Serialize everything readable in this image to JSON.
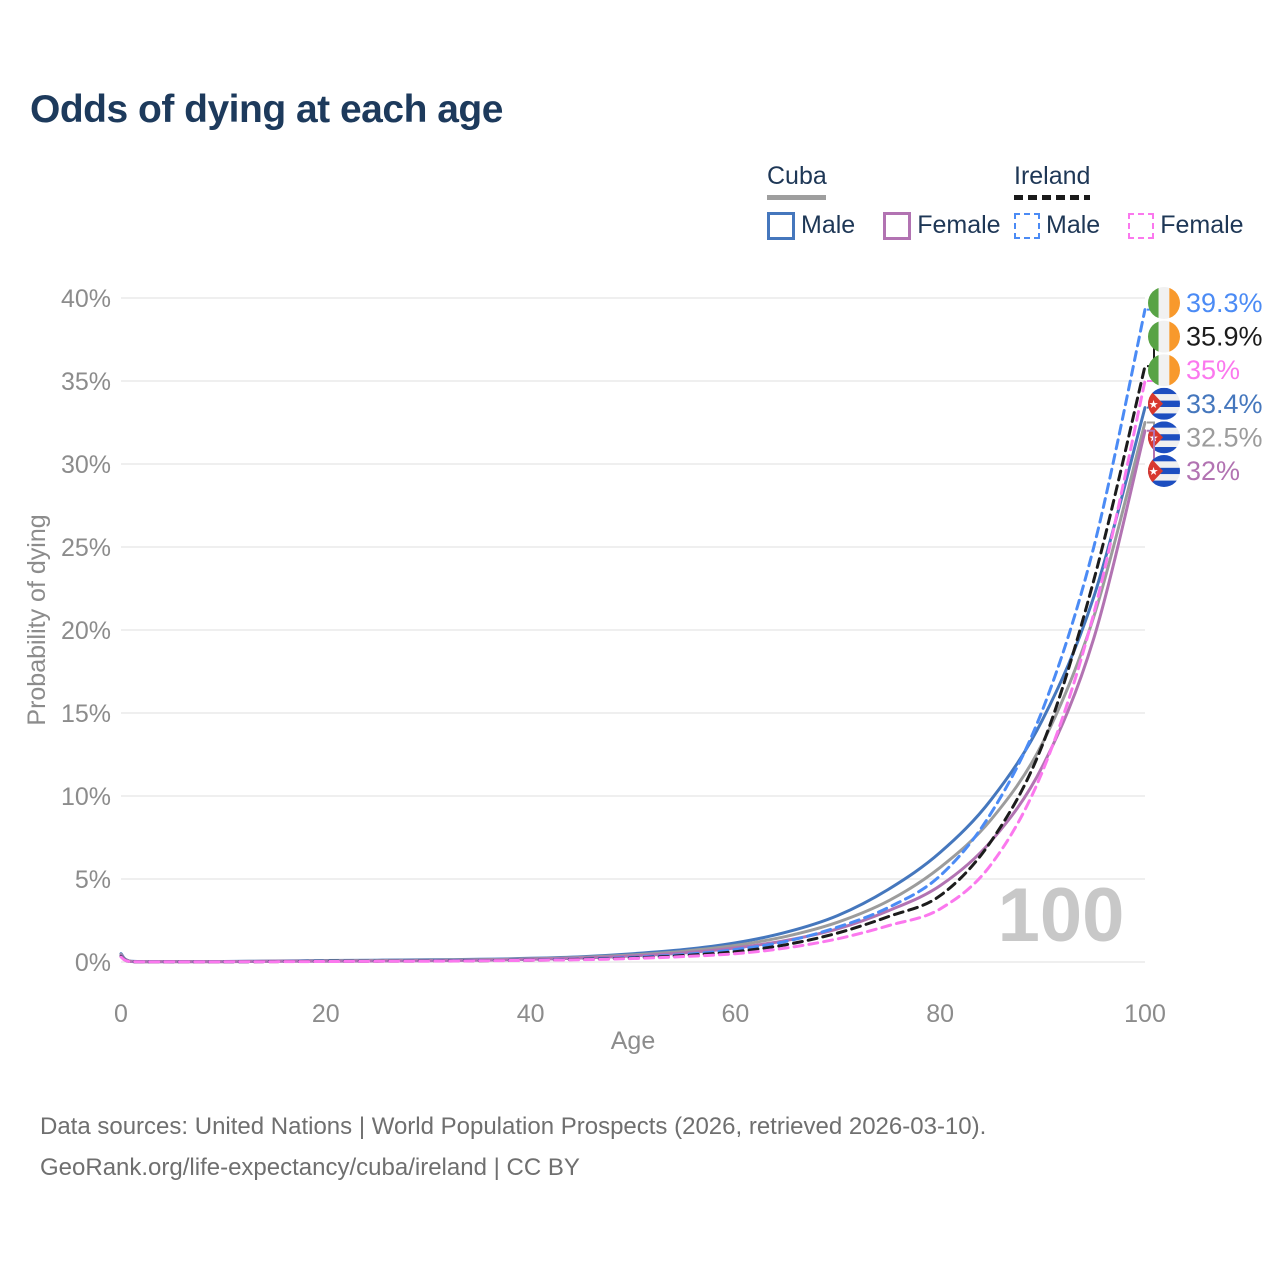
{
  "title": "Odds of dying at each age",
  "legend": {
    "groups": [
      {
        "label": "Cuba",
        "line_style": "solid",
        "swatch_color": "#9e9e9e",
        "items": [
          {
            "label": "Male",
            "color": "#4577bd",
            "dashed": false
          },
          {
            "label": "Female",
            "color": "#b273b2",
            "dashed": false
          }
        ]
      },
      {
        "label": "Ireland",
        "line_style": "dashed",
        "swatch_color": "#1a1a1a",
        "items": [
          {
            "label": "Male",
            "color": "#4b8bf5",
            "dashed": true
          },
          {
            "label": "Female",
            "color": "#fb78ee",
            "dashed": true
          }
        ]
      }
    ]
  },
  "chart_data": {
    "type": "line",
    "title": "Odds of dying at each age",
    "xlabel": "Age",
    "ylabel": "Probability of dying",
    "xlim": [
      0,
      100
    ],
    "ylim": [
      0,
      40
    ],
    "x_ticks": [
      0,
      20,
      40,
      60,
      80,
      100
    ],
    "y_ticks_percent": [
      0,
      5,
      10,
      15,
      20,
      25,
      30,
      35,
      40
    ],
    "grid": "horizontal",
    "hover_age_watermark": "100",
    "x": [
      0,
      1,
      5,
      10,
      15,
      20,
      25,
      30,
      35,
      40,
      45,
      50,
      55,
      60,
      65,
      70,
      75,
      80,
      85,
      90,
      95,
      100
    ],
    "series": [
      {
        "name": "Cuba Male",
        "country": "Cuba",
        "sex": "male",
        "color": "#4577bd",
        "dash": false,
        "end_label": "33.4%",
        "values": [
          0.5,
          0.04,
          0.03,
          0.03,
          0.06,
          0.09,
          0.11,
          0.13,
          0.16,
          0.22,
          0.32,
          0.5,
          0.75,
          1.15,
          1.8,
          2.8,
          4.4,
          6.6,
          9.8,
          14.6,
          22.0,
          33.4
        ]
      },
      {
        "name": "Cuba Both sexes",
        "country": "Cuba",
        "sex": "both",
        "color": "#9c9c9c",
        "dash": false,
        "end_label": "32.5%",
        "values": [
          0.45,
          0.035,
          0.025,
          0.025,
          0.05,
          0.07,
          0.09,
          0.11,
          0.14,
          0.19,
          0.28,
          0.43,
          0.65,
          1.0,
          1.55,
          2.4,
          3.7,
          5.7,
          8.6,
          13.2,
          20.8,
          32.5
        ]
      },
      {
        "name": "Cuba Female",
        "country": "Cuba",
        "sex": "female",
        "color": "#b273b2",
        "dash": false,
        "end_label": "32%",
        "values": [
          0.4,
          0.03,
          0.02,
          0.02,
          0.04,
          0.05,
          0.06,
          0.08,
          0.11,
          0.16,
          0.24,
          0.37,
          0.55,
          0.85,
          1.3,
          2.0,
          3.1,
          4.6,
          7.3,
          11.8,
          19.5,
          32.0
        ]
      },
      {
        "name": "Ireland Male",
        "country": "Ireland",
        "sex": "male",
        "color": "#4b8bf5",
        "dash": true,
        "end_label": "39.3%",
        "values": [
          0.35,
          0.02,
          0.01,
          0.01,
          0.03,
          0.05,
          0.06,
          0.07,
          0.09,
          0.12,
          0.18,
          0.28,
          0.45,
          0.75,
          1.25,
          2.1,
          3.3,
          5.2,
          9.0,
          15.2,
          25.0,
          39.3
        ]
      },
      {
        "name": "Ireland Both sexes",
        "country": "Ireland",
        "sex": "both",
        "color": "#1c1c1c",
        "dash": true,
        "end_label": "35.9%",
        "values": [
          0.33,
          0.02,
          0.01,
          0.01,
          0.025,
          0.04,
          0.05,
          0.06,
          0.08,
          0.11,
          0.16,
          0.24,
          0.39,
          0.62,
          1.05,
          1.75,
          2.75,
          4.0,
          7.3,
          13.1,
          23.0,
          35.9
        ]
      },
      {
        "name": "Ireland Female",
        "country": "Ireland",
        "sex": "female",
        "color": "#fb78ee",
        "dash": true,
        "end_label": "35%",
        "values": [
          0.3,
          0.02,
          0.01,
          0.01,
          0.02,
          0.03,
          0.04,
          0.05,
          0.07,
          0.1,
          0.14,
          0.21,
          0.33,
          0.5,
          0.85,
          1.4,
          2.2,
          3.2,
          5.9,
          11.5,
          21.0,
          35.0
        ]
      }
    ],
    "flag_colors": {
      "Ireland": {
        "green": "#58a345",
        "white": "#f1f1f1",
        "orange": "#f8992c"
      },
      "Cuba": {
        "blue": "#1d4ec0",
        "white": "#f0f0f0",
        "red": "#d8382e",
        "star": "#ffffff"
      }
    },
    "axis_color": "#8c8c8c",
    "grid_color": "#eaeaea",
    "watermark_color": "#c8c8c8"
  },
  "footer": {
    "line1": "Data sources: United Nations | World Population Prospects (2026, retrieved 2026-03-10).",
    "line2": "GeoRank.org/life-expectancy/cuba/ireland | CC BY"
  }
}
